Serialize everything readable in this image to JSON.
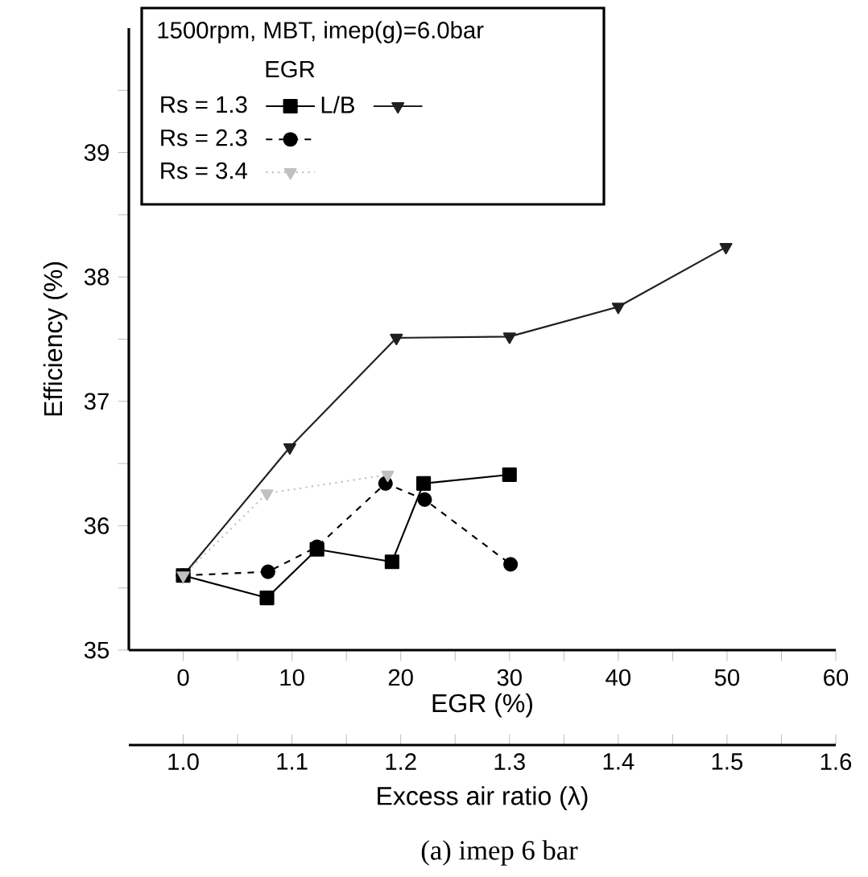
{
  "chart_data": {
    "type": "line",
    "legend_title": "1500rpm, MBT, imep(g)=6.0bar",
    "xlabel": "EGR (%)",
    "ylabel": "Efficiency (%)",
    "x2label": "Excess air ratio (λ)",
    "annotations": [
      "EGR",
      "(a) imep 6 bar"
    ],
    "xlim": [
      -5,
      60
    ],
    "xticks": [
      0,
      {
        "value": 5,
        "label": null
      },
      10,
      {
        "value": 15,
        "label": null
      },
      20,
      {
        "value": 25,
        "label": null
      },
      30,
      {
        "value": 35,
        "label": null
      },
      40,
      {
        "value": 45,
        "label": null
      },
      50,
      {
        "value": 55,
        "label": null
      },
      60
    ],
    "x2lim": [
      0.95,
      1.6
    ],
    "x2ticks": [
      {
        "value": 1.0,
        "label": "1.0"
      },
      {
        "value": 1.05,
        "label": null
      },
      1.1,
      {
        "value": 1.15,
        "label": null
      },
      1.2,
      {
        "value": 1.25,
        "label": null
      },
      1.3,
      {
        "value": 1.35,
        "label": null
      },
      1.4,
      {
        "value": 1.45,
        "label": null
      },
      1.5,
      {
        "value": 1.55,
        "label": null
      },
      1.6
    ],
    "ylim": [
      35,
      40
    ],
    "yticks": [
      35,
      {
        "value": 35.5,
        "label": null
      },
      36,
      {
        "value": 36.5,
        "label": null
      },
      37,
      {
        "value": 37.5,
        "label": null
      },
      38,
      {
        "value": 38.5,
        "label": null
      },
      39,
      {
        "value": 39.5,
        "label": null
      }
    ],
    "legend": "top left",
    "grid": false,
    "series": [
      {
        "name": "Rs = 1.3",
        "color": "#000000",
        "marker": "square",
        "line_style": "solid",
        "x": [
          0,
          7.7,
          12.3,
          19.2,
          22.1,
          30.0
        ],
        "values": [
          35.6,
          35.42,
          35.81,
          35.71,
          36.34,
          36.41
        ]
      },
      {
        "name": "L/B",
        "color": "#202020",
        "marker": "triangle",
        "line_style": "solid",
        "x": [
          0,
          9.8,
          19.6,
          30,
          40,
          49.9
        ],
        "values": [
          35.6,
          36.63,
          37.51,
          37.52,
          37.76,
          38.24
        ]
      },
      {
        "name": "Rs = 2.3",
        "color": "#000000",
        "marker": "circle",
        "line_style": "dashed",
        "x": [
          0,
          7.8,
          12.3,
          18.6,
          22.2,
          30.1
        ],
        "values": [
          35.6,
          35.63,
          35.83,
          36.34,
          36.21,
          35.69
        ]
      },
      {
        "name": "Rs = 3.4",
        "color": "#c0c0c0",
        "marker": "triangle",
        "line_style": "dotted",
        "x": [
          0,
          7.7,
          18.8
        ],
        "values": [
          35.6,
          36.26,
          36.41
        ]
      }
    ]
  }
}
